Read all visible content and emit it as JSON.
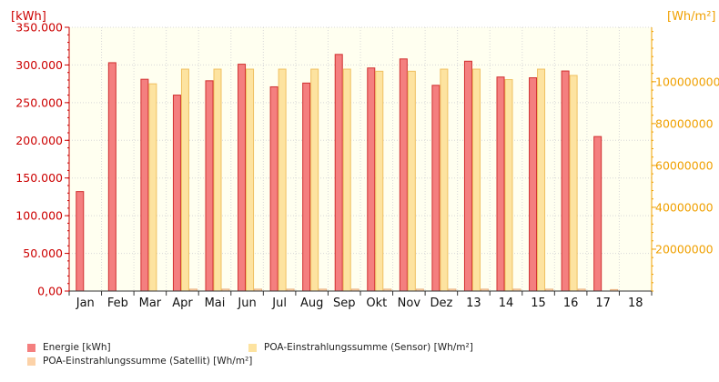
{
  "chart_data": {
    "type": "bar",
    "categories": [
      "Jan",
      "Feb",
      "Mar",
      "Apr",
      "Mai",
      "Jun",
      "Jul",
      "Aug",
      "Sep",
      "Okt",
      "Nov",
      "Dez",
      "13",
      "14",
      "15",
      "16",
      "17",
      "18"
    ],
    "y_left": {
      "unit_label": "[kWh]",
      "ylim": [
        0,
        350000
      ],
      "ticks": [
        "0,00",
        "50.000",
        "100.000",
        "150.000",
        "200.000",
        "250.000",
        "300.000",
        "350.000"
      ],
      "tick_values": [
        0,
        50000,
        100000,
        150000,
        200000,
        250000,
        300000,
        350000
      ],
      "color": "#cc0000"
    },
    "y_right": {
      "unit_label": "[Wh/m²]",
      "ylim": [
        0,
        126000000
      ],
      "ticks": [
        "20000000",
        "40000000",
        "60000000",
        "80000000",
        "100000000"
      ],
      "tick_values": [
        20000000,
        40000000,
        60000000,
        80000000,
        100000000
      ],
      "color": "#f0a000"
    },
    "series": [
      {
        "name": "Energie [kWh]",
        "axis": "left",
        "color": "#f47f7f",
        "edge": "#d03030",
        "values": [
          132000,
          303000,
          281000,
          260000,
          279000,
          301000,
          271000,
          276000,
          314000,
          296000,
          308000,
          273000,
          305000,
          284000,
          283000,
          292000,
          205000,
          null
        ]
      },
      {
        "name": "POA-Einstrahlungssumme (Sensor) [Wh/m²]",
        "axis": "right",
        "color": "#fde3a0",
        "edge": "#f0c060",
        "values": [
          null,
          null,
          99000000,
          106000000,
          106000000,
          106000000,
          106000000,
          106000000,
          106000000,
          105000000,
          105000000,
          106000000,
          106000000,
          101000000,
          106000000,
          103000000,
          null,
          null
        ]
      },
      {
        "name": "POA-Einstrahlungssumme (Satellit) [Wh/m²]",
        "axis": "right",
        "color": "#fcd2a8",
        "edge": "#e8b080",
        "values": [
          null,
          null,
          null,
          900000,
          900000,
          900000,
          900000,
          900000,
          900000,
          900000,
          900000,
          900000,
          900000,
          900000,
          900000,
          900000,
          700000,
          null
        ]
      }
    ],
    "grid": "dotted",
    "legend_position": "bottom"
  }
}
